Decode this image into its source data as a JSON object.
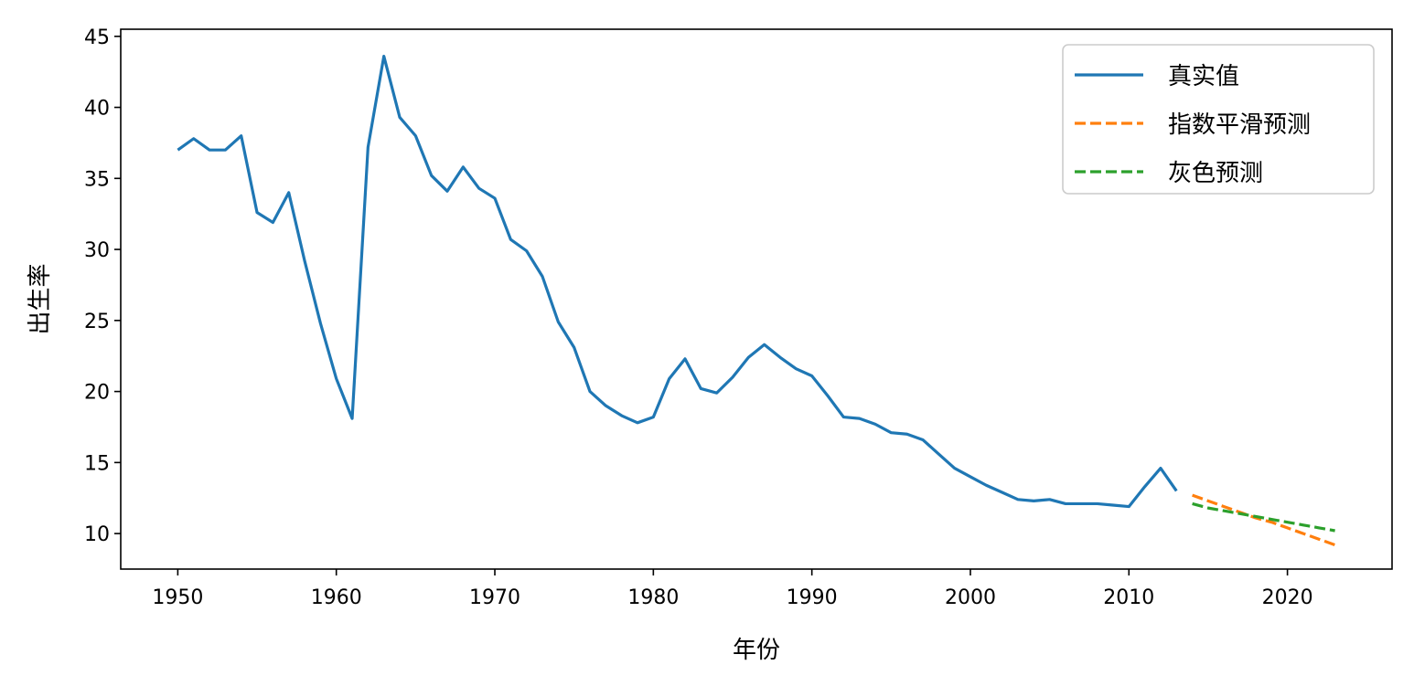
{
  "chart_data": {
    "type": "line",
    "xlabel": "年份",
    "ylabel": "出生率",
    "xlim": [
      1946.4,
      2026.6
    ],
    "ylim": [
      7.5,
      45.5
    ],
    "xticks": [
      1950,
      1960,
      1970,
      1980,
      1990,
      2000,
      2010,
      2020
    ],
    "yticks": [
      10,
      15,
      20,
      25,
      30,
      35,
      40,
      45
    ],
    "grid": false,
    "legend_position": "top-right",
    "series": [
      {
        "name": "真实值",
        "color": "#1f77b4",
        "style": "solid",
        "x": [
          1950,
          1951,
          1952,
          1953,
          1954,
          1955,
          1956,
          1957,
          1958,
          1959,
          1960,
          1961,
          1962,
          1963,
          1964,
          1965,
          1966,
          1967,
          1968,
          1969,
          1970,
          1971,
          1972,
          1973,
          1974,
          1975,
          1976,
          1977,
          1978,
          1979,
          1980,
          1981,
          1982,
          1983,
          1984,
          1985,
          1986,
          1987,
          1988,
          1989,
          1990,
          1991,
          1992,
          1993,
          1994,
          1995,
          1996,
          1997,
          1998,
          1999,
          2000,
          2001,
          2002,
          2003,
          2004,
          2005,
          2006,
          2007,
          2008,
          2009,
          2010,
          2011,
          2012,
          2013
        ],
        "y": [
          37.0,
          37.8,
          37.0,
          37.0,
          38.0,
          32.6,
          31.9,
          34.0,
          29.2,
          24.8,
          20.9,
          18.1,
          37.2,
          43.6,
          39.3,
          38.0,
          35.2,
          34.1,
          35.8,
          34.3,
          33.6,
          30.7,
          29.9,
          28.1,
          24.9,
          23.1,
          20.0,
          19.0,
          18.3,
          17.8,
          18.2,
          20.9,
          22.3,
          20.2,
          19.9,
          21.0,
          22.4,
          23.3,
          22.4,
          21.6,
          21.1,
          19.7,
          18.2,
          18.1,
          17.7,
          17.1,
          17.0,
          16.6,
          15.6,
          14.6,
          14.0,
          13.4,
          12.9,
          12.4,
          12.3,
          12.4,
          12.1,
          12.1,
          12.1,
          12.0,
          11.9,
          13.3,
          14.6,
          13.0
        ]
      },
      {
        "name": "指数平滑预测",
        "color": "#ff7f0e",
        "style": "dashed",
        "x": [
          2014,
          2015,
          2016,
          2017,
          2018,
          2019,
          2020,
          2021,
          2022,
          2023
        ],
        "y": [
          12.7,
          12.3,
          11.9,
          11.5,
          11.1,
          10.8,
          10.4,
          10.0,
          9.6,
          9.2
        ]
      },
      {
        "name": "灰色预测",
        "color": "#2ca02c",
        "style": "dashed",
        "x": [
          2014,
          2015,
          2016,
          2017,
          2018,
          2019,
          2020,
          2021,
          2022,
          2023
        ],
        "y": [
          12.1,
          11.8,
          11.6,
          11.4,
          11.2,
          11.0,
          10.8,
          10.6,
          10.4,
          10.2
        ]
      }
    ]
  }
}
